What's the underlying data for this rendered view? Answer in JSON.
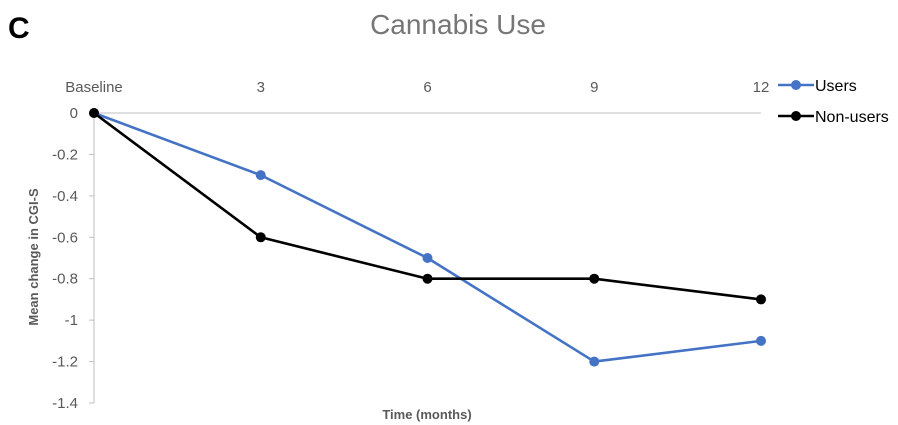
{
  "panel_label": "C",
  "chart_data": {
    "type": "line",
    "title": "Cannabis Use",
    "xlabel": "Time (months)",
    "ylabel": "Mean change in CGI-S",
    "categories": [
      "Baseline",
      "3",
      "6",
      "9",
      "12"
    ],
    "ylim": [
      -1.4,
      0
    ],
    "yticks": [
      0,
      -0.2,
      -0.4,
      -0.6,
      -0.8,
      -1,
      -1.2,
      -1.4
    ],
    "ytick_labels": [
      "0",
      "-0.2",
      "-0.4",
      "-0.6",
      "-0.8",
      "-1",
      "-1.2",
      "-1.4"
    ],
    "x_axis_position": "top",
    "grid": false,
    "legend_position": "top-right",
    "series": [
      {
        "name": "Users",
        "color": "#4472c4",
        "values": [
          0,
          -0.3,
          -0.7,
          -1.2,
          -1.1
        ]
      },
      {
        "name": "Non-users",
        "color": "#000000",
        "values": [
          0,
          -0.6,
          -0.8,
          -0.8,
          -0.9
        ]
      }
    ]
  }
}
